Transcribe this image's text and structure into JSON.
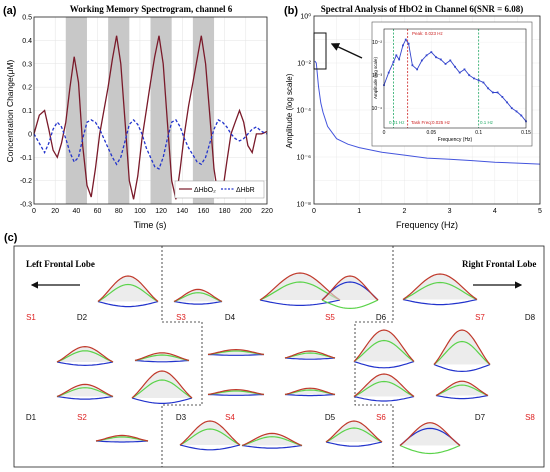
{
  "panels": {
    "a": {
      "label": "(a)"
    },
    "b": {
      "label": "(b)"
    },
    "c": {
      "label": "(c)"
    }
  },
  "chart_data": [
    {
      "type": "line",
      "title": "Working Memory Spectrogram, channel 6",
      "xlabel": "Time (s)",
      "ylabel": "Concentration Change(μM)",
      "xlim": [
        0,
        220
      ],
      "ylim": [
        -0.3,
        0.5
      ],
      "xticks": [
        "0",
        "20",
        "40",
        "60",
        "80",
        "100",
        "120",
        "140",
        "160",
        "180",
        "200",
        "220"
      ],
      "yticks": [
        "-0.3",
        "-0.2",
        "-0.1",
        "0",
        "0.1",
        "0.2",
        "0.3",
        "0.4",
        "0.5"
      ],
      "grid": true,
      "shaded_regions": [
        [
          30,
          50
        ],
        [
          70,
          90
        ],
        [
          110,
          130
        ],
        [
          150,
          170
        ]
      ],
      "legend_position": "bottom-right",
      "series": [
        {
          "name": "ΔHbO₂",
          "color": "#7a1a2a",
          "style": "solid",
          "x": [
            0,
            5,
            10,
            14,
            18,
            22,
            26,
            30,
            34,
            38,
            42,
            46,
            50,
            54,
            58,
            62,
            66,
            70,
            74,
            78,
            82,
            86,
            90,
            94,
            98,
            102,
            106,
            110,
            114,
            118,
            122,
            126,
            130,
            134,
            138,
            142,
            146,
            150,
            154,
            158,
            162,
            166,
            170,
            174,
            178,
            182,
            186,
            190,
            194,
            198,
            202,
            206,
            210,
            215,
            220
          ],
          "values": [
            0.0,
            0.08,
            0.1,
            0.02,
            -0.07,
            -0.1,
            -0.04,
            0.05,
            0.2,
            0.33,
            0.22,
            -0.05,
            -0.22,
            -0.27,
            -0.15,
            0.0,
            0.1,
            0.2,
            0.32,
            0.42,
            0.3,
            0.05,
            -0.2,
            -0.28,
            -0.18,
            -0.02,
            0.1,
            0.22,
            0.33,
            0.42,
            0.3,
            0.05,
            -0.2,
            -0.28,
            -0.15,
            0.0,
            0.12,
            0.22,
            0.32,
            0.42,
            0.3,
            0.08,
            -0.15,
            -0.27,
            -0.25,
            -0.12,
            0.0,
            0.05,
            0.1,
            0.05,
            -0.05,
            -0.08,
            0.0,
            0.0,
            0.01
          ]
        },
        {
          "name": "ΔHbR",
          "color": "#2233cc",
          "style": "dashed",
          "x": [
            0,
            5,
            10,
            14,
            18,
            22,
            26,
            30,
            34,
            38,
            42,
            46,
            50,
            54,
            58,
            62,
            66,
            70,
            74,
            78,
            82,
            86,
            90,
            94,
            98,
            102,
            106,
            110,
            114,
            118,
            122,
            126,
            130,
            134,
            138,
            142,
            146,
            150,
            154,
            158,
            162,
            166,
            170,
            174,
            178,
            182,
            186,
            190,
            194,
            198,
            202,
            206,
            210,
            215,
            220
          ],
          "values": [
            0.0,
            -0.04,
            -0.08,
            -0.04,
            0.02,
            0.05,
            0.03,
            -0.02,
            -0.08,
            -0.12,
            -0.1,
            -0.02,
            0.05,
            0.06,
            0.05,
            0.02,
            -0.02,
            -0.06,
            -0.1,
            -0.13,
            -0.1,
            -0.03,
            0.04,
            0.06,
            0.04,
            0.0,
            -0.06,
            -0.1,
            -0.14,
            -0.15,
            -0.1,
            -0.02,
            0.05,
            0.06,
            0.03,
            -0.02,
            -0.06,
            -0.09,
            -0.12,
            -0.13,
            -0.1,
            -0.04,
            0.02,
            0.06,
            0.05,
            0.03,
            0.0,
            -0.02,
            -0.03,
            -0.02,
            0.0,
            0.02,
            0.03,
            0.01,
            0.0
          ]
        }
      ]
    },
    {
      "type": "line",
      "title": "Spectral Analysis of HbO2 in Channel 6(SNR = 6.08)",
      "xlabel": "Frequency (Hz)",
      "ylabel": "Amplitude (log scale)",
      "xlim": [
        0,
        5
      ],
      "ylim_exponent": [
        -8,
        0
      ],
      "y_scale": "log",
      "xticks": [
        "0",
        "1",
        "2",
        "3",
        "4",
        "5"
      ],
      "yticks": [
        "10⁻⁸",
        "10⁻⁶",
        "10⁻⁴",
        "10⁻²",
        "10⁰"
      ],
      "grid": true,
      "series": [
        {
          "name": "",
          "color": "#4455dd",
          "x": [
            0.02,
            0.05,
            0.1,
            0.15,
            0.2,
            0.3,
            0.5,
            0.75,
            1.0,
            1.5,
            2.0,
            2.5,
            3.0,
            3.5,
            4.0,
            4.5,
            5.0
          ],
          "values": [
            0.012,
            0.01,
            0.001,
            0.0002,
            8e-05,
            2e-05,
            6e-06,
            3.5e-06,
            2.5e-06,
            1.6e-06,
            1.2e-06,
            9e-07,
            8e-07,
            7e-07,
            6e-07,
            5.5e-07,
            5e-07
          ]
        }
      ],
      "inset": {
        "xlabel": "Frequency (Hz)",
        "ylabel": "Amplitude (log scale)",
        "xlim": [
          0,
          0.15
        ],
        "xticks": [
          "0",
          "0.05",
          "0.1",
          "0.15"
        ],
        "y_scale": "log",
        "yticks": [
          "10⁻²",
          "10⁻³",
          "10⁻⁴"
        ],
        "annotations": {
          "peak": "Peak: 0.023 Hz",
          "task": "Task Freq:0.025 Hz",
          "low": "0.01 Hz",
          "high": "0.1 Hz"
        },
        "vlines": [
          0.01,
          0.025,
          0.1
        ],
        "x": [
          0.0,
          0.005,
          0.01,
          0.013,
          0.016,
          0.02,
          0.023,
          0.026,
          0.03,
          0.035,
          0.04,
          0.045,
          0.05,
          0.055,
          0.06,
          0.065,
          0.07,
          0.075,
          0.08,
          0.085,
          0.09,
          0.095,
          0.1,
          0.105,
          0.11,
          0.115,
          0.12,
          0.125,
          0.13,
          0.135,
          0.14,
          0.145,
          0.15
        ],
        "values": [
          0.0005,
          0.0012,
          0.0025,
          0.004,
          0.003,
          0.008,
          0.012,
          0.009,
          0.002,
          0.0015,
          0.0028,
          0.004,
          0.005,
          0.0035,
          0.003,
          0.0022,
          0.0028,
          0.0018,
          0.0012,
          0.0015,
          0.001,
          0.0008,
          0.0007,
          0.0006,
          0.0004,
          0.0003,
          0.0003,
          0.00022,
          0.00015,
          0.0001,
          8e-05,
          6e-05,
          4e-05
        ]
      }
    }
  ],
  "panel_c": {
    "left_label": "Left Frontal Lobe",
    "right_label": "Right Frontal Lobe",
    "labels": [
      {
        "text": "S1",
        "color": "#dd2222"
      },
      {
        "text": "D2",
        "color": "#111111"
      },
      {
        "text": "S3",
        "color": "#dd2222"
      },
      {
        "text": "D4",
        "color": "#111111"
      },
      {
        "text": "S5",
        "color": "#dd2222"
      },
      {
        "text": "D6",
        "color": "#111111"
      },
      {
        "text": "S7",
        "color": "#dd2222"
      },
      {
        "text": "D8",
        "color": "#111111"
      },
      {
        "text": "D1",
        "color": "#111111"
      },
      {
        "text": "S2",
        "color": "#dd2222"
      },
      {
        "text": "D3",
        "color": "#111111"
      },
      {
        "text": "S4",
        "color": "#dd2222"
      },
      {
        "text": "D5",
        "color": "#111111"
      },
      {
        "text": "S6",
        "color": "#dd2222"
      },
      {
        "text": "D7",
        "color": "#111111"
      },
      {
        "text": "S8",
        "color": "#dd2222"
      }
    ],
    "colors": {
      "red": "#c0392b",
      "green": "#5bd34a",
      "blue": "#2233cc",
      "shade": "#d9d9d9"
    }
  }
}
